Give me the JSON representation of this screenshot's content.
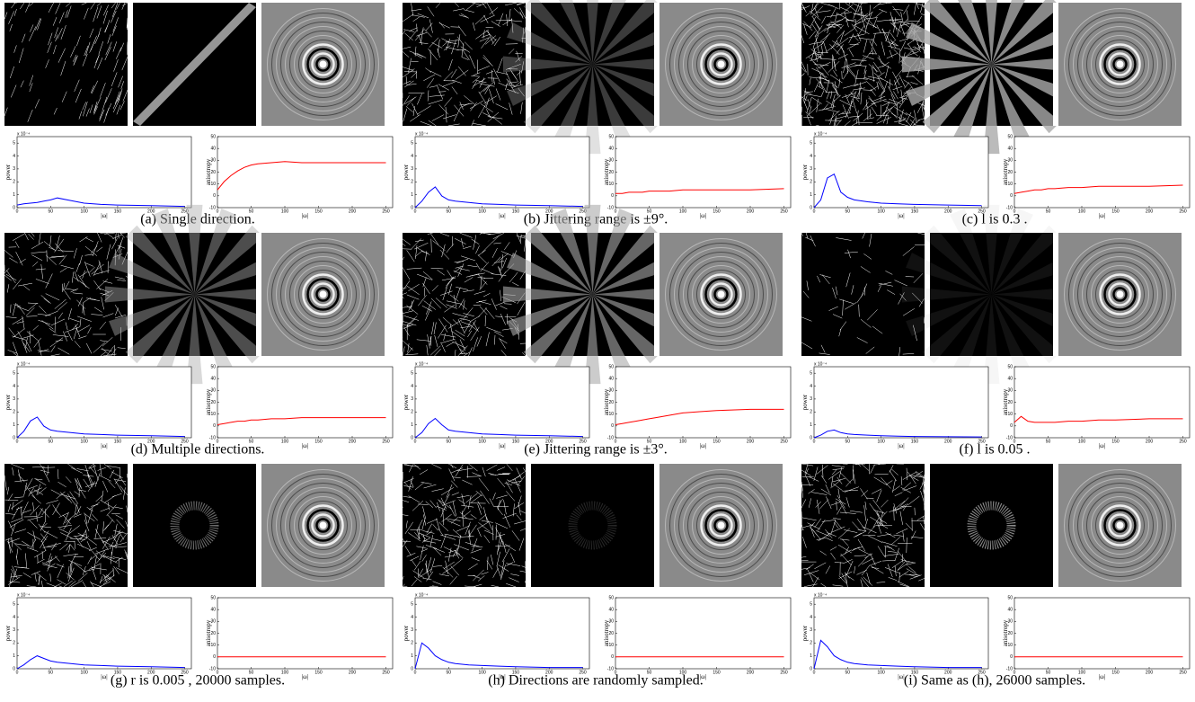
{
  "plots": {
    "x": [
      0,
      10,
      20,
      30,
      40,
      50,
      60,
      80,
      100,
      125,
      150,
      200,
      250
    ],
    "xlim": [
      0,
      260
    ],
    "xticks": [
      0,
      50,
      100,
      150,
      200,
      250
    ],
    "xlabel": "|ω|",
    "power": {
      "ylabel": "power",
      "scale_label": "x 10⁻⁴",
      "ylim": [
        0,
        5.5
      ],
      "yticks": [
        0,
        1,
        2,
        3,
        4,
        5
      ],
      "color": "#0000ff"
    },
    "anisotropy": {
      "ylabel": "anisotropy",
      "ylim": [
        -10,
        50
      ],
      "yticks": [
        -10,
        0,
        10,
        20,
        30,
        40,
        50
      ],
      "color": "#ff0000"
    }
  },
  "panels": [
    {
      "caption": "(a) Single direction.",
      "power": [
        0.2,
        0.3,
        0.35,
        0.4,
        0.5,
        0.6,
        0.75,
        0.55,
        0.35,
        0.25,
        0.2,
        0.15,
        0.1
      ],
      "anisotropy": [
        5,
        12,
        17,
        21,
        24,
        26,
        27,
        28,
        29,
        28,
        28,
        28,
        28
      ]
    },
    {
      "caption": "(b) Jittering range is ±9°.",
      "power": [
        0,
        0.5,
        1.2,
        1.6,
        0.9,
        0.6,
        0.5,
        0.4,
        0.3,
        0.25,
        0.2,
        0.15,
        0.1
      ],
      "anisotropy": [
        2,
        2,
        3,
        3,
        3,
        4,
        4,
        4,
        5,
        5,
        5,
        5,
        6
      ]
    },
    {
      "caption": "(c) l is 0.3 .",
      "power": [
        0,
        0.6,
        2.3,
        2.6,
        1.2,
        0.8,
        0.6,
        0.45,
        0.35,
        0.3,
        0.25,
        0.2,
        0.15
      ],
      "anisotropy": [
        2,
        3,
        4,
        5,
        5,
        6,
        6,
        7,
        7,
        8,
        8,
        8,
        9
      ]
    },
    {
      "caption": "(d) Multiple directions.",
      "power": [
        0,
        0.5,
        1.3,
        1.6,
        0.9,
        0.6,
        0.5,
        0.4,
        0.3,
        0.25,
        0.2,
        0.15,
        0.1
      ],
      "anisotropy": [
        1,
        2,
        3,
        4,
        4,
        5,
        5,
        6,
        6,
        7,
        7,
        7,
        7
      ]
    },
    {
      "caption": "(e) Jittering range is ±3°.",
      "power": [
        0,
        0.4,
        1.1,
        1.5,
        1.0,
        0.6,
        0.5,
        0.4,
        0.3,
        0.25,
        0.2,
        0.15,
        0.1
      ],
      "anisotropy": [
        1,
        2,
        3,
        4,
        5,
        6,
        7,
        9,
        11,
        12,
        13,
        14,
        14
      ]
    },
    {
      "caption": "(f) l is 0.05 .",
      "power": [
        0,
        0.2,
        0.5,
        0.6,
        0.4,
        0.3,
        0.25,
        0.2,
        0.15,
        0.12,
        0.1,
        0.08,
        0.06
      ],
      "anisotropy": [
        3,
        8,
        4,
        3,
        3,
        3,
        3,
        4,
        4,
        5,
        5,
        6,
        6
      ]
    },
    {
      "caption": "(g) r is 0.005 , 20000 samples.",
      "power": [
        0,
        0.3,
        0.7,
        1.0,
        0.8,
        0.6,
        0.5,
        0.4,
        0.3,
        0.25,
        0.2,
        0.15,
        0.1
      ],
      "anisotropy": [
        0,
        0,
        0,
        0,
        0,
        0,
        0,
        0,
        0,
        0,
        0,
        0,
        0
      ]
    },
    {
      "caption": "(h) Directions are randomly sampled.",
      "power": [
        0,
        2.0,
        1.6,
        1.0,
        0.7,
        0.5,
        0.4,
        0.3,
        0.25,
        0.2,
        0.15,
        0.1,
        0.1
      ],
      "anisotropy": [
        0,
        0,
        0,
        0,
        0,
        0,
        0,
        0,
        0,
        0,
        0,
        0,
        0
      ]
    },
    {
      "caption": "(i) Same as (h), 26000 samples.",
      "power": [
        0,
        2.2,
        1.7,
        1.0,
        0.7,
        0.5,
        0.4,
        0.3,
        0.25,
        0.2,
        0.15,
        0.1,
        0.1
      ],
      "anisotropy": [
        0,
        0,
        0,
        0,
        0,
        0,
        0,
        0,
        0,
        0,
        0,
        0,
        0
      ]
    }
  ]
}
